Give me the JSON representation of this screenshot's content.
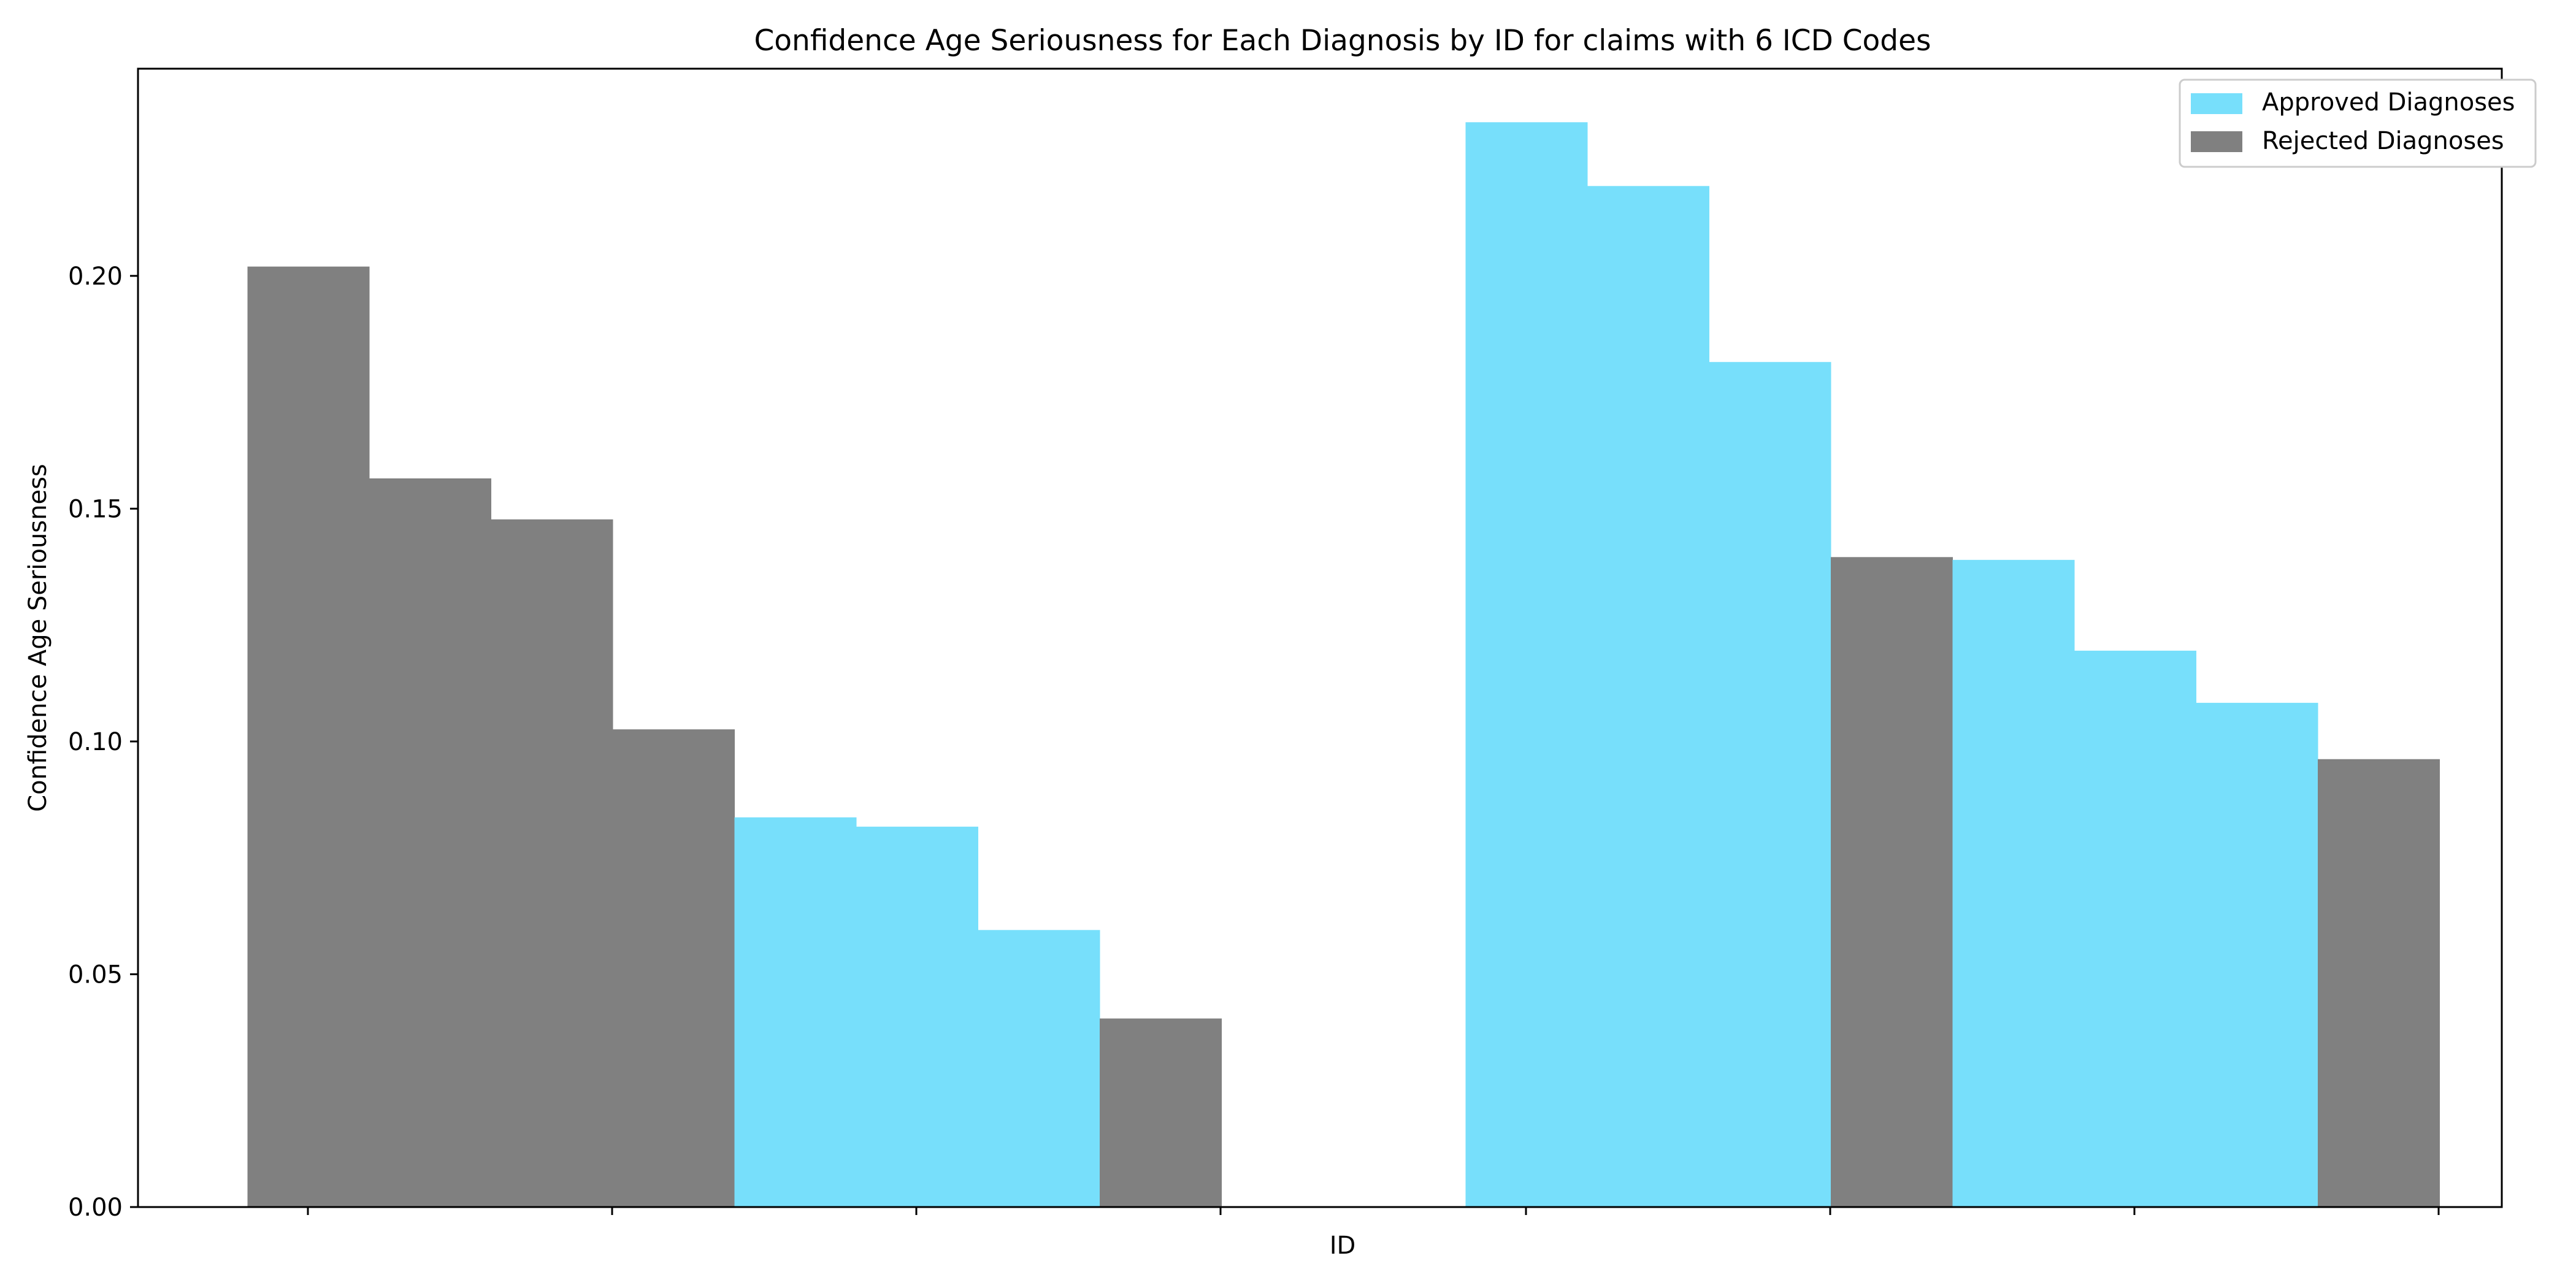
{
  "chart_data": {
    "type": "bar",
    "title": "Confidence Age Seriousness for Each Diagnosis by ID for claims with 6 ICD Codes",
    "xlabel": "ID",
    "ylabel": "Confidence Age Seriousness",
    "ylim": [
      0,
      0.2445
    ],
    "yticks": [
      0.0,
      0.05,
      0.1,
      0.15,
      0.2
    ],
    "ytick_labels": [
      "0.00",
      "0.05",
      "0.10",
      "0.15",
      "0.20"
    ],
    "grid": false,
    "legend": {
      "placement": "top-right",
      "entries": [
        {
          "label": "Approved Diagnoses",
          "color": "#77dffb"
        },
        {
          "label": "Rejected Diagnoses",
          "color": "#808080"
        }
      ]
    },
    "colors": {
      "approved": "#77dffb",
      "rejected": "#808080"
    },
    "groups": [
      {
        "bars": [
          {
            "value": 0.202,
            "status": "rejected"
          },
          {
            "value": 0.1565,
            "status": "rejected"
          },
          {
            "value": 0.1477,
            "status": "rejected"
          },
          {
            "value": 0.1026,
            "status": "rejected"
          },
          {
            "value": 0.0837,
            "status": "approved"
          },
          {
            "value": 0.0817,
            "status": "approved"
          },
          {
            "value": 0.0595,
            "status": "approved"
          },
          {
            "value": 0.0405,
            "status": "rejected"
          }
        ]
      },
      {
        "bars": [
          {
            "value": 0.233,
            "status": "approved"
          },
          {
            "value": 0.2193,
            "status": "approved"
          },
          {
            "value": 0.1815,
            "status": "approved"
          },
          {
            "value": 0.1396,
            "status": "rejected"
          },
          {
            "value": 0.139,
            "status": "approved"
          },
          {
            "value": 0.1195,
            "status": "approved"
          },
          {
            "value": 0.1083,
            "status": "approved"
          },
          {
            "value": 0.0962,
            "status": "rejected"
          }
        ]
      }
    ]
  }
}
